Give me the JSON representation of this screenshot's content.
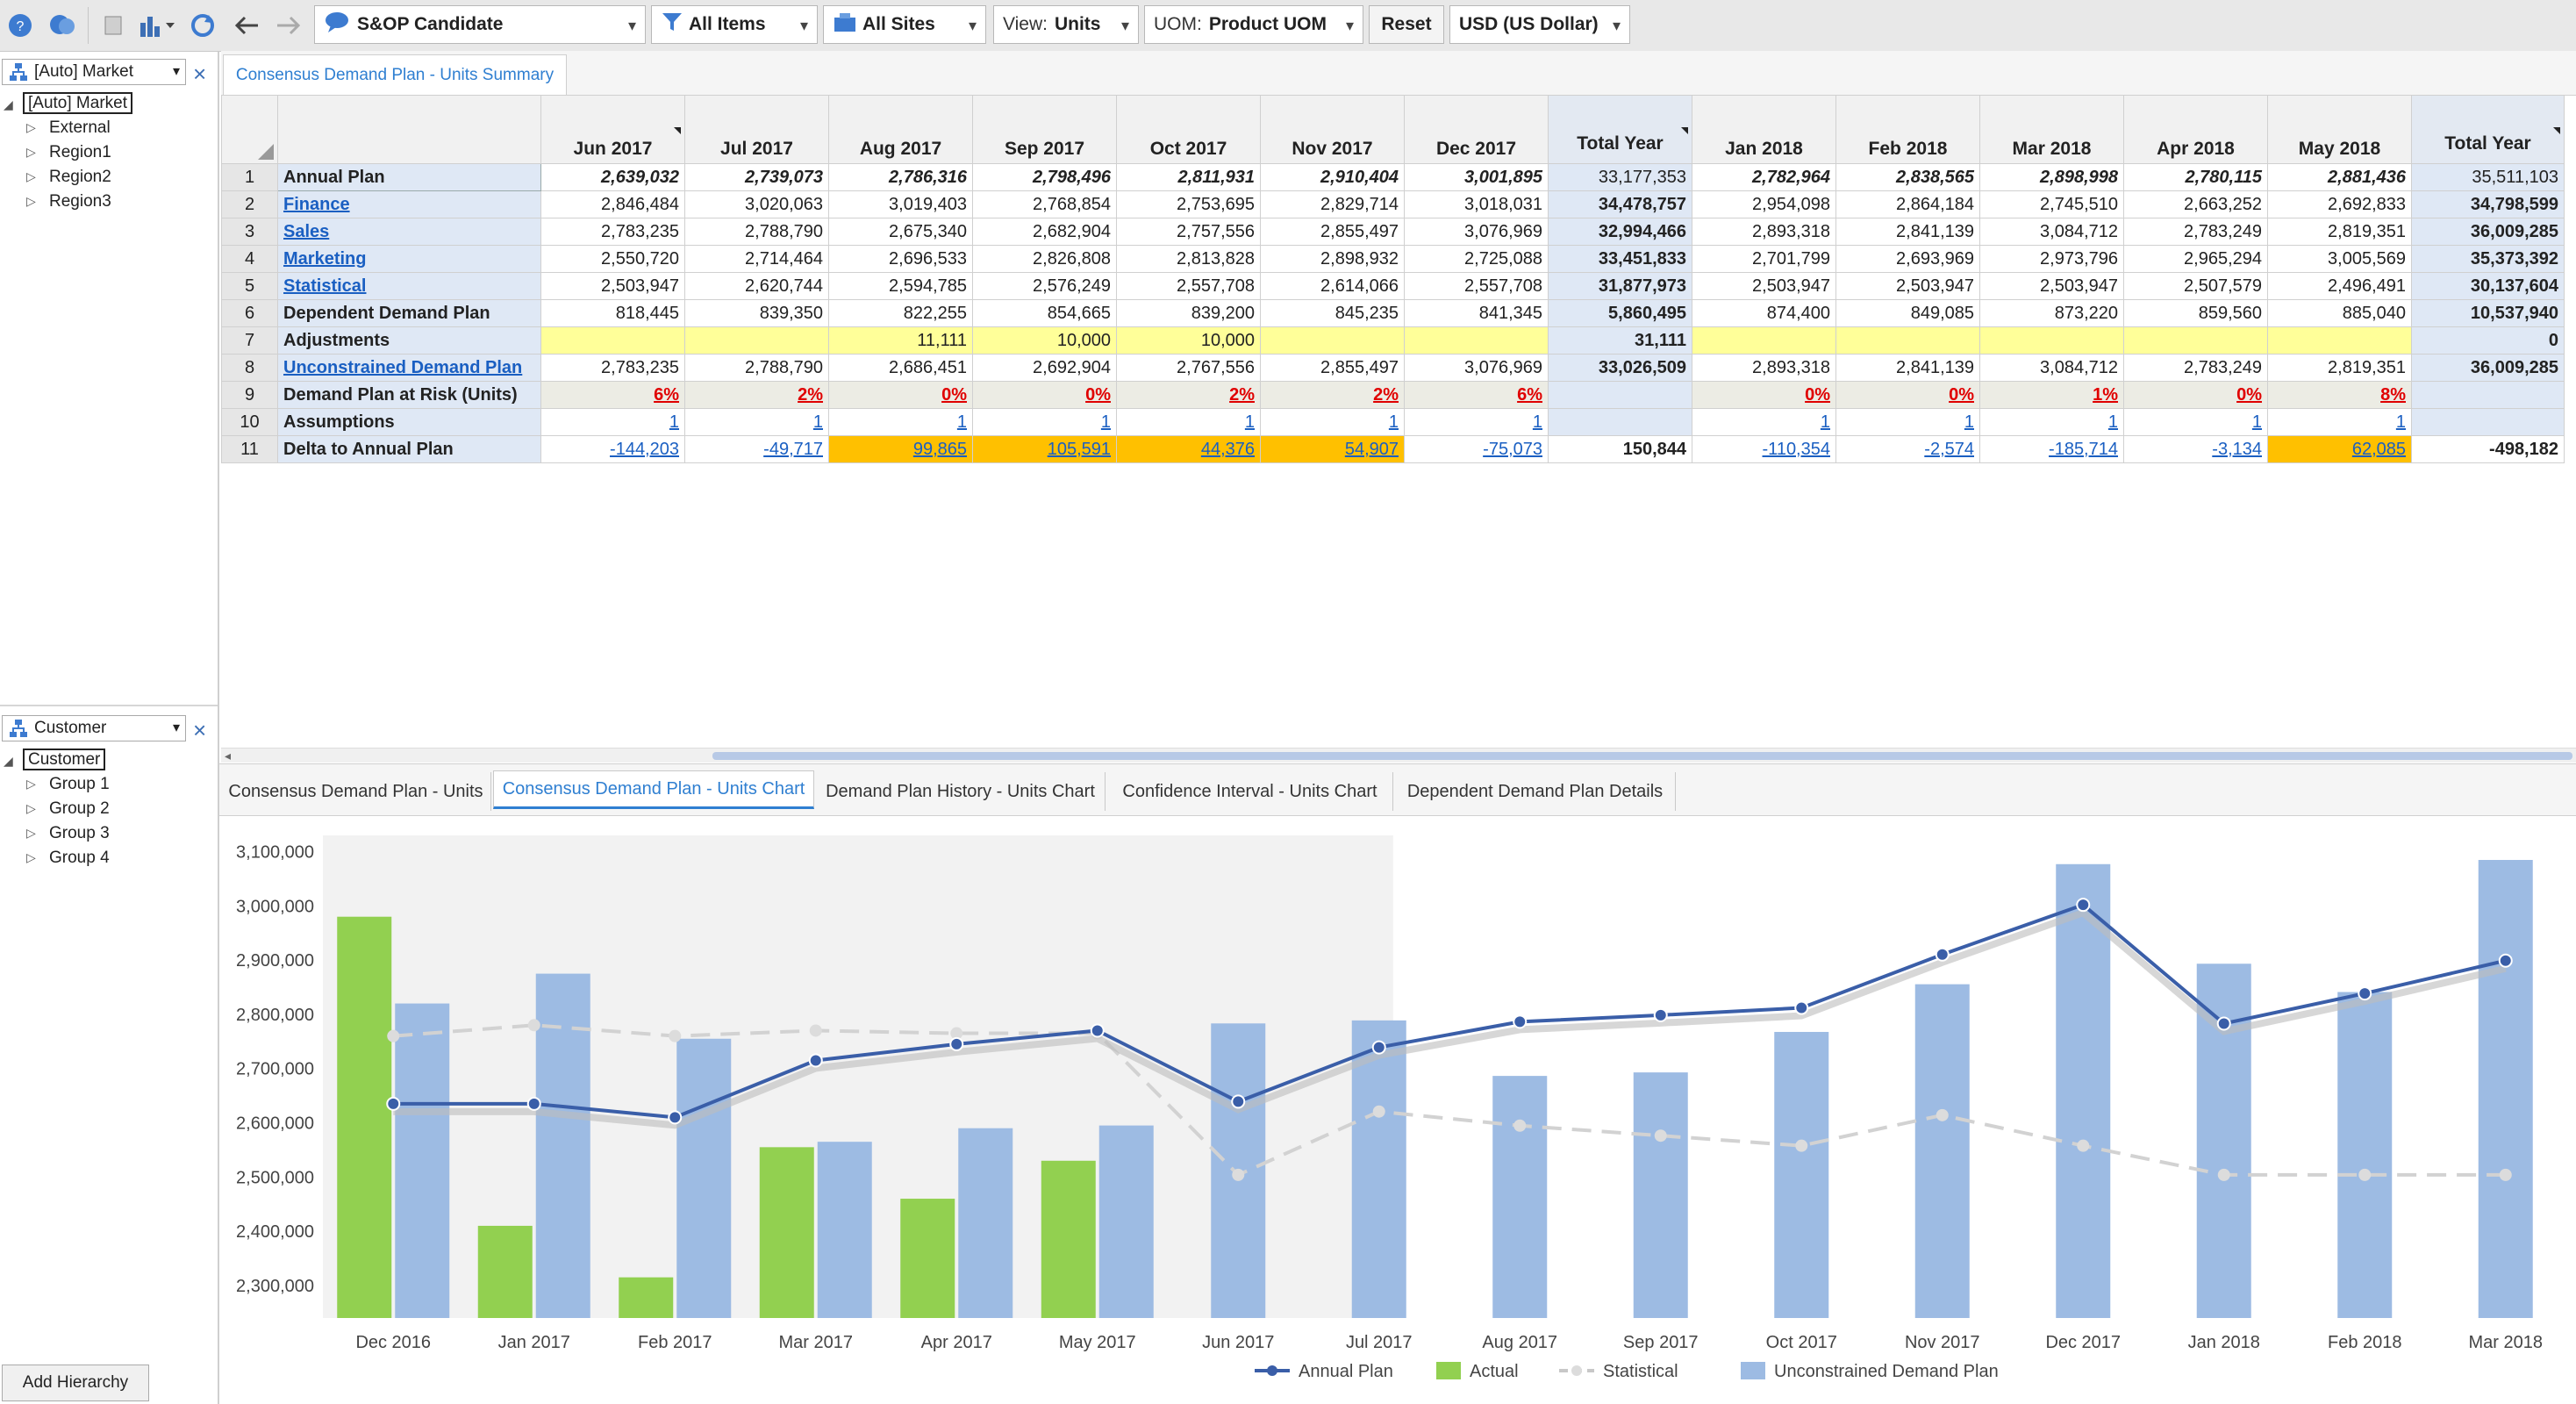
{
  "toolbar": {
    "scenario": "S&OP Candidate",
    "items": "All Items",
    "sites": "All Sites",
    "view_label": "View:",
    "view_value": "Units",
    "uom_label": "UOM:",
    "uom_value": "Product UOM",
    "reset": "Reset",
    "currency": "USD (US Dollar)"
  },
  "market_panel": {
    "field": "[Auto] Market",
    "root": "[Auto] Market",
    "items": [
      "External",
      "Region1",
      "Region2",
      "Region3"
    ]
  },
  "customer_panel": {
    "field": "Customer",
    "root": "Customer",
    "items": [
      "Group 1",
      "Group 2",
      "Group 3",
      "Group 4"
    ]
  },
  "add_hierarchy": "Add Hierarchy",
  "top_tab": "Consensus Demand Plan - Units Summary",
  "grid": {
    "columns": [
      "Jun 2017",
      "Jul 2017",
      "Aug 2017",
      "Sep 2017",
      "Oct 2017",
      "Nov 2017",
      "Dec 2017",
      "Total Year",
      "Jan 2018",
      "Feb 2018",
      "Mar 2018",
      "Apr 2018",
      "May 2018",
      "Total Year"
    ],
    "rows": [
      {
        "num": "1",
        "label": "Annual Plan",
        "cells": [
          "2,639,032",
          "2,739,073",
          "2,786,316",
          "2,798,496",
          "2,811,931",
          "2,910,404",
          "3,001,895",
          "33,177,353",
          "2,782,964",
          "2,838,565",
          "2,898,998",
          "2,780,115",
          "2,881,436",
          "35,511,103"
        ]
      },
      {
        "num": "2",
        "label": "Finance",
        "cells": [
          "2,846,484",
          "3,020,063",
          "3,019,403",
          "2,768,854",
          "2,753,695",
          "2,829,714",
          "3,018,031",
          "34,478,757",
          "2,954,098",
          "2,864,184",
          "2,745,510",
          "2,663,252",
          "2,692,833",
          "34,798,599"
        ]
      },
      {
        "num": "3",
        "label": "Sales",
        "cells": [
          "2,783,235",
          "2,788,790",
          "2,675,340",
          "2,682,904",
          "2,757,556",
          "2,855,497",
          "3,076,969",
          "32,994,466",
          "2,893,318",
          "2,841,139",
          "3,084,712",
          "2,783,249",
          "2,819,351",
          "36,009,285"
        ]
      },
      {
        "num": "4",
        "label": "Marketing",
        "cells": [
          "2,550,720",
          "2,714,464",
          "2,696,533",
          "2,826,808",
          "2,813,828",
          "2,898,932",
          "2,725,088",
          "33,451,833",
          "2,701,799",
          "2,693,969",
          "2,973,796",
          "2,965,294",
          "3,005,569",
          "35,373,392"
        ]
      },
      {
        "num": "5",
        "label": "Statistical",
        "cells": [
          "2,503,947",
          "2,620,744",
          "2,594,785",
          "2,576,249",
          "2,557,708",
          "2,614,066",
          "2,557,708",
          "31,877,973",
          "2,503,947",
          "2,503,947",
          "2,503,947",
          "2,507,579",
          "2,496,491",
          "30,137,604"
        ]
      },
      {
        "num": "6",
        "label": "Dependent Demand Plan",
        "cells": [
          "818,445",
          "839,350",
          "822,255",
          "854,665",
          "839,200",
          "845,235",
          "841,345",
          "5,860,495",
          "874,400",
          "849,085",
          "873,220",
          "859,560",
          "885,040",
          "10,537,940"
        ]
      },
      {
        "num": "7",
        "label": "Adjustments",
        "cells": [
          "",
          "",
          "11,111",
          "10,000",
          "10,000",
          "",
          "",
          "31,111",
          "",
          "",
          "",
          "",
          "",
          "0"
        ]
      },
      {
        "num": "8",
        "label": "Unconstrained Demand Plan",
        "cells": [
          "2,783,235",
          "2,788,790",
          "2,686,451",
          "2,692,904",
          "2,767,556",
          "2,855,497",
          "3,076,969",
          "33,026,509",
          "2,893,318",
          "2,841,139",
          "3,084,712",
          "2,783,249",
          "2,819,351",
          "36,009,285"
        ]
      },
      {
        "num": "9",
        "label": "Demand Plan at Risk (Units)",
        "cells": [
          "6%",
          "2%",
          "0%",
          "0%",
          "2%",
          "2%",
          "6%",
          "",
          "0%",
          "0%",
          "1%",
          "0%",
          "8%",
          ""
        ]
      },
      {
        "num": "10",
        "label": "Assumptions",
        "cells": [
          "1",
          "1",
          "1",
          "1",
          "1",
          "1",
          "1",
          "",
          "1",
          "1",
          "1",
          "1",
          "1",
          ""
        ]
      },
      {
        "num": "11",
        "label": "Delta to Annual Plan",
        "cells": [
          "-144,203",
          "-49,717",
          "99,865",
          "105,591",
          "44,376",
          "54,907",
          "-75,073",
          "150,844",
          "-110,354",
          "-2,574",
          "-185,714",
          "-3,134",
          "62,085",
          "-498,182"
        ]
      }
    ]
  },
  "bottom_tabs": [
    "Consensus Demand Plan - Units",
    "Consensus Demand Plan - Units Chart",
    "Demand Plan History - Units Chart",
    "Confidence Interval - Units Chart",
    "Dependent Demand Plan Details"
  ],
  "chart_data": {
    "type": "bar",
    "categories": [
      "Dec 2016",
      "Jan 2017",
      "Feb 2017",
      "Mar 2017",
      "Apr 2017",
      "May 2017",
      "Jun 2017",
      "Jul 2017",
      "Aug 2017",
      "Sep 2017",
      "Oct 2017",
      "Nov 2017",
      "Dec 2017",
      "Jan 2018",
      "Feb 2018",
      "Mar 2018"
    ],
    "ylim": [
      2240000,
      3130000
    ],
    "yticks": [
      "2,300,000",
      "2,400,000",
      "2,500,000",
      "2,600,000",
      "2,700,000",
      "2,800,000",
      "2,900,000",
      "3,000,000",
      "3,100,000"
    ],
    "series": [
      {
        "name": "Annual Plan",
        "kind": "line",
        "color": "#3a5ea8",
        "values": [
          2635000,
          2635000,
          2610000,
          2715000,
          2745000,
          2770000,
          2639032,
          2739073,
          2786316,
          2798496,
          2811931,
          2910404,
          3001895,
          2782964,
          2838565,
          2898998
        ]
      },
      {
        "name": "Actual",
        "kind": "bar",
        "color": "#92d050",
        "values": [
          2980000,
          2410000,
          2315000,
          2555000,
          2460000,
          2530000,
          null,
          null,
          null,
          null,
          null,
          null,
          null,
          null,
          null,
          null
        ]
      },
      {
        "name": "Statistical",
        "kind": "dashed-line",
        "color": "#c8c8c8",
        "values": [
          2760000,
          2780000,
          2760000,
          2770000,
          2765000,
          2765000,
          2503947,
          2620744,
          2594785,
          2576249,
          2557708,
          2614066,
          2557708,
          2503947,
          2503947,
          2503947
        ]
      },
      {
        "name": "Unconstrained Demand Plan",
        "kind": "bar",
        "color": "#9dbbe3",
        "values": [
          2820000,
          2875000,
          2755000,
          2565000,
          2590000,
          2595000,
          2783235,
          2788790,
          2686451,
          2692904,
          2767556,
          2855497,
          3076969,
          2893318,
          2841139,
          3084712
        ]
      }
    ],
    "history_shaded": true,
    "legend_position": "bottom-center"
  }
}
